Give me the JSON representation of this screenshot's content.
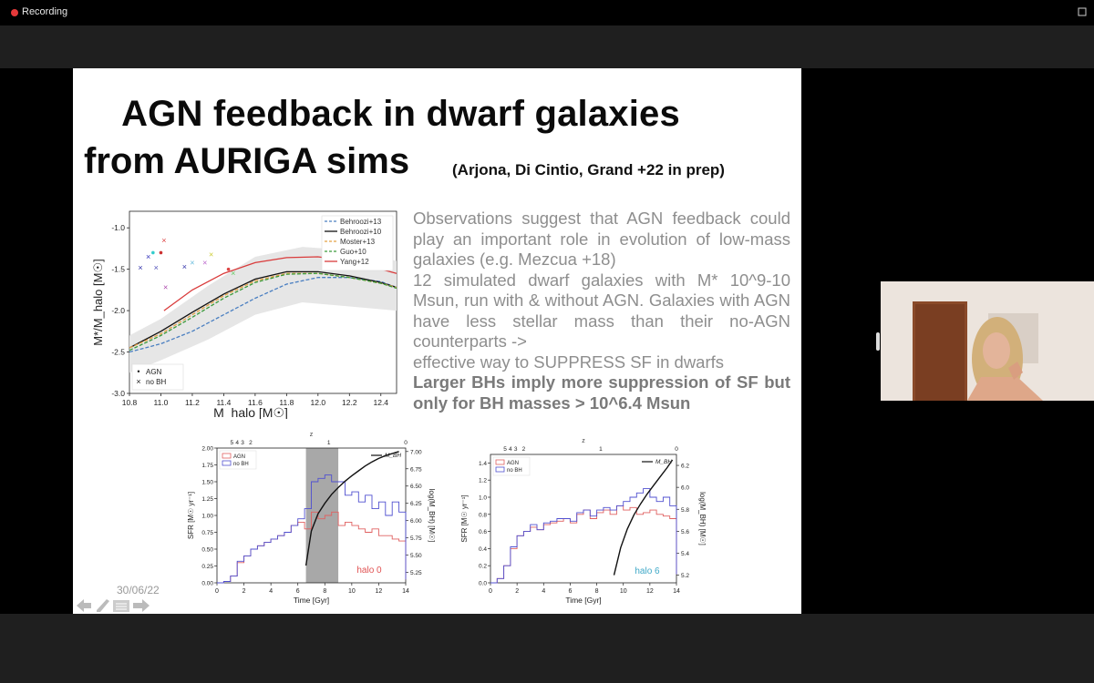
{
  "recording": {
    "label": "Recording",
    "color": "#e5393a"
  },
  "slide": {
    "title_line1": "AGN feedback in dwarf galaxies",
    "title_line2": "from AURIGA sims",
    "title_citation": "(Arjona, Di Cintio, Grand +22 in prep)",
    "body_paragraph1": "Observations suggest that AGN feedback could play an important role in evolution of low-mass galaxies (e.g. Mezcua +18)",
    "body_paragraph2": "12 simulated dwarf galaxies with M* 10^9-10 Msun, run with & without AGN. Galaxies with AGN have less stellar mass than their no-AGN counterparts ->",
    "body_paragraph3": "effective way to SUPPRESS SF in dwarfs",
    "body_bold": "Larger BHs imply more suppression of SF but only for BH masses > 10^6.4 Msun",
    "date": "30/06/22"
  },
  "chart_data": [
    {
      "type": "line",
      "xlabel": "M_halo [M☉]",
      "ylabel": "M*/M_halo [M☉]",
      "xlim": [
        10.8,
        12.5
      ],
      "ylim": [
        -3.0,
        -0.8
      ],
      "xticks": [
        "10.8",
        "11.0",
        "11.2",
        "11.4",
        "11.6",
        "11.8",
        "12.0",
        "12.2",
        "12.4"
      ],
      "yticks": [
        "-1.0",
        "-1.5",
        "-2.0",
        "-2.5",
        "-3.0"
      ],
      "legend_position": "top-right",
      "series": [
        {
          "name": "Behroozi+13",
          "style": "dashed",
          "color": "#4a7fc1",
          "x": [
            10.8,
            11.0,
            11.2,
            11.4,
            11.6,
            11.8,
            12.0,
            12.2,
            12.4,
            12.5
          ],
          "y": [
            -2.5,
            -2.4,
            -2.25,
            -2.05,
            -1.85,
            -1.68,
            -1.6,
            -1.6,
            -1.65,
            -1.72
          ]
        },
        {
          "name": "Behroozi+10",
          "style": "solid",
          "color": "#111111",
          "x": [
            10.8,
            11.0,
            11.2,
            11.4,
            11.6,
            11.8,
            12.0,
            12.2,
            12.4,
            12.5
          ],
          "y": [
            -2.45,
            -2.25,
            -2.02,
            -1.8,
            -1.62,
            -1.53,
            -1.53,
            -1.58,
            -1.66,
            -1.72
          ]
        },
        {
          "name": "Moster+13",
          "style": "dashed",
          "color": "#e3a044",
          "x": [
            10.8,
            11.0,
            11.2,
            11.4,
            11.6,
            11.8,
            12.0,
            12.2,
            12.4,
            12.5
          ],
          "y": [
            -2.45,
            -2.28,
            -2.05,
            -1.82,
            -1.64,
            -1.55,
            -1.55,
            -1.6,
            -1.67,
            -1.72
          ]
        },
        {
          "name": "Guo+10",
          "style": "dashed",
          "color": "#3a9a3a",
          "x": [
            10.8,
            11.0,
            11.2,
            11.4,
            11.6,
            11.8,
            12.0,
            12.2,
            12.4,
            12.5
          ],
          "y": [
            -2.48,
            -2.3,
            -2.08,
            -1.85,
            -1.66,
            -1.56,
            -1.55,
            -1.6,
            -1.67,
            -1.73
          ]
        },
        {
          "name": "Yang+12",
          "style": "solid",
          "color": "#d93b3b",
          "x": [
            11.02,
            11.2,
            11.4,
            11.6,
            11.8,
            12.0,
            12.2,
            12.4,
            12.5
          ],
          "y": [
            -2.0,
            -1.75,
            -1.55,
            -1.42,
            -1.36,
            -1.35,
            -1.4,
            -1.5,
            -1.55
          ]
        }
      ],
      "scatter_legend": [
        {
          "marker": "•",
          "label": "AGN"
        },
        {
          "marker": "×",
          "label": "no BH"
        }
      ]
    },
    {
      "type": "line",
      "annotation": "halo 0",
      "xlabel": "Time [Gyr]",
      "ylabel": "SFR [M☉ yr⁻¹]",
      "y2label": "log(M_BH) [M☉]",
      "top_label": "z",
      "xticks": [
        "0",
        "2",
        "4",
        "6",
        "8",
        "10",
        "12",
        "14"
      ],
      "yticks": [
        "0.00",
        "0.25",
        "0.50",
        "0.75",
        "1.00",
        "1.25",
        "1.50",
        "1.75",
        "2.00"
      ],
      "y2ticks": [
        "5.25",
        "5.50",
        "5.75",
        "6.00",
        "6.25",
        "6.50",
        "6.75",
        "7.00"
      ],
      "top_ticks": [
        "5",
        "4",
        "3",
        "2",
        "1",
        "0"
      ],
      "xlim": [
        0,
        14
      ],
      "ylim": [
        0,
        2.0
      ],
      "y2lim": [
        5.1,
        7.05
      ],
      "shaded_region": [
        6.6,
        9.0
      ],
      "legend": [
        "AGN",
        "no BH",
        "M_BH"
      ],
      "series": [
        {
          "name": "AGN",
          "color": "#e06060",
          "x": [
            0,
            0.5,
            1,
            1.5,
            2,
            2.5,
            3,
            3.5,
            4,
            4.5,
            5,
            5.5,
            6,
            6.5,
            7,
            7.5,
            8,
            8.5,
            9,
            9.5,
            10,
            10.5,
            11,
            11.5,
            12,
            12.5,
            13,
            13.5,
            14
          ],
          "y": [
            0,
            0.02,
            0.1,
            0.3,
            0.4,
            0.5,
            0.55,
            0.6,
            0.65,
            0.7,
            0.75,
            0.85,
            0.9,
            0.8,
            1.05,
            0.95,
            1.0,
            1.05,
            0.85,
            0.9,
            0.85,
            0.8,
            0.75,
            0.8,
            0.7,
            0.7,
            0.65,
            0.62,
            0.05
          ]
        },
        {
          "name": "no BH",
          "color": "#5050d0",
          "x": [
            0,
            0.5,
            1,
            1.5,
            2,
            2.5,
            3,
            3.5,
            4,
            4.5,
            5,
            5.5,
            6,
            6.5,
            7,
            7.5,
            8,
            8.5,
            9,
            9.5,
            10,
            10.5,
            11,
            11.5,
            12,
            12.5,
            13,
            13.5,
            14
          ],
          "y": [
            0,
            0.02,
            0.1,
            0.32,
            0.4,
            0.5,
            0.55,
            0.6,
            0.65,
            0.7,
            0.75,
            0.85,
            0.95,
            1.1,
            1.5,
            1.55,
            1.6,
            1.5,
            1.5,
            1.3,
            1.35,
            1.2,
            1.3,
            1.1,
            1.2,
            1.0,
            1.2,
            1.05,
            0.05
          ]
        },
        {
          "name": "M_BH",
          "color": "#111111",
          "x": [
            6.6,
            7,
            7.5,
            8,
            8.5,
            9,
            9.5,
            10,
            10.5,
            11,
            11.5,
            12,
            12.5,
            13,
            13.5
          ],
          "y": [
            5.35,
            5.85,
            6.1,
            6.25,
            6.38,
            6.48,
            6.57,
            6.65,
            6.72,
            6.79,
            6.85,
            6.9,
            6.94,
            6.97,
            7.0
          ]
        }
      ]
    },
    {
      "type": "line",
      "annotation": "halo 6",
      "xlabel": "Time [Gyr]",
      "ylabel": "SFR [M☉ yr⁻¹]",
      "y2label": "log(M_BH) [M☉]",
      "top_label": "z",
      "xticks": [
        "0",
        "2",
        "4",
        "6",
        "8",
        "10",
        "12",
        "14"
      ],
      "yticks": [
        "0.0",
        "0.2",
        "0.4",
        "0.6",
        "0.8",
        "1.0",
        "1.2",
        "1.4"
      ],
      "y2ticks": [
        "5.2",
        "5.4",
        "5.6",
        "5.8",
        "6.0",
        "6.2"
      ],
      "top_ticks": [
        "5",
        "4",
        "3",
        "2",
        "1",
        "0"
      ],
      "xlim": [
        0,
        14
      ],
      "ylim": [
        0,
        1.5
      ],
      "y2lim": [
        5.13,
        6.3
      ],
      "legend": [
        "AGN",
        "no BH",
        "M_BH"
      ],
      "series": [
        {
          "name": "AGN",
          "color": "#e06060",
          "x": [
            0,
            0.5,
            1,
            1.5,
            2,
            2.5,
            3,
            3.5,
            4,
            4.5,
            5,
            5.5,
            6,
            6.5,
            7,
            7.5,
            8,
            8.5,
            9,
            9.5,
            10,
            10.5,
            11,
            11.5,
            12,
            12.5,
            13,
            13.5,
            14
          ],
          "y": [
            0,
            0.05,
            0.2,
            0.4,
            0.55,
            0.6,
            0.65,
            0.62,
            0.68,
            0.7,
            0.72,
            0.75,
            0.7,
            0.8,
            0.85,
            0.75,
            0.82,
            0.85,
            0.8,
            0.9,
            0.85,
            0.88,
            0.8,
            0.82,
            0.85,
            0.8,
            0.78,
            0.75,
            0.1
          ]
        },
        {
          "name": "no BH",
          "color": "#5050d0",
          "x": [
            0,
            0.5,
            1,
            1.5,
            2,
            2.5,
            3,
            3.5,
            4,
            4.5,
            5,
            5.5,
            6,
            6.5,
            7,
            7.5,
            8,
            8.5,
            9,
            9.5,
            10,
            10.5,
            11,
            11.5,
            12,
            12.5,
            13,
            13.5,
            14
          ],
          "y": [
            0,
            0.05,
            0.2,
            0.42,
            0.55,
            0.6,
            0.68,
            0.62,
            0.7,
            0.72,
            0.75,
            0.75,
            0.72,
            0.82,
            0.85,
            0.78,
            0.85,
            0.88,
            0.85,
            0.9,
            0.95,
            1.0,
            1.05,
            1.1,
            1.0,
            0.95,
            1.0,
            0.9,
            0.1
          ]
        },
        {
          "name": "M_BH",
          "color": "#111111",
          "x": [
            9.3,
            9.8,
            10.3,
            10.8,
            11.3,
            11.8,
            12.3,
            12.8,
            13.3,
            13.7
          ],
          "y": [
            5.2,
            5.45,
            5.62,
            5.75,
            5.85,
            5.94,
            6.02,
            6.1,
            6.18,
            6.25
          ]
        }
      ]
    }
  ]
}
